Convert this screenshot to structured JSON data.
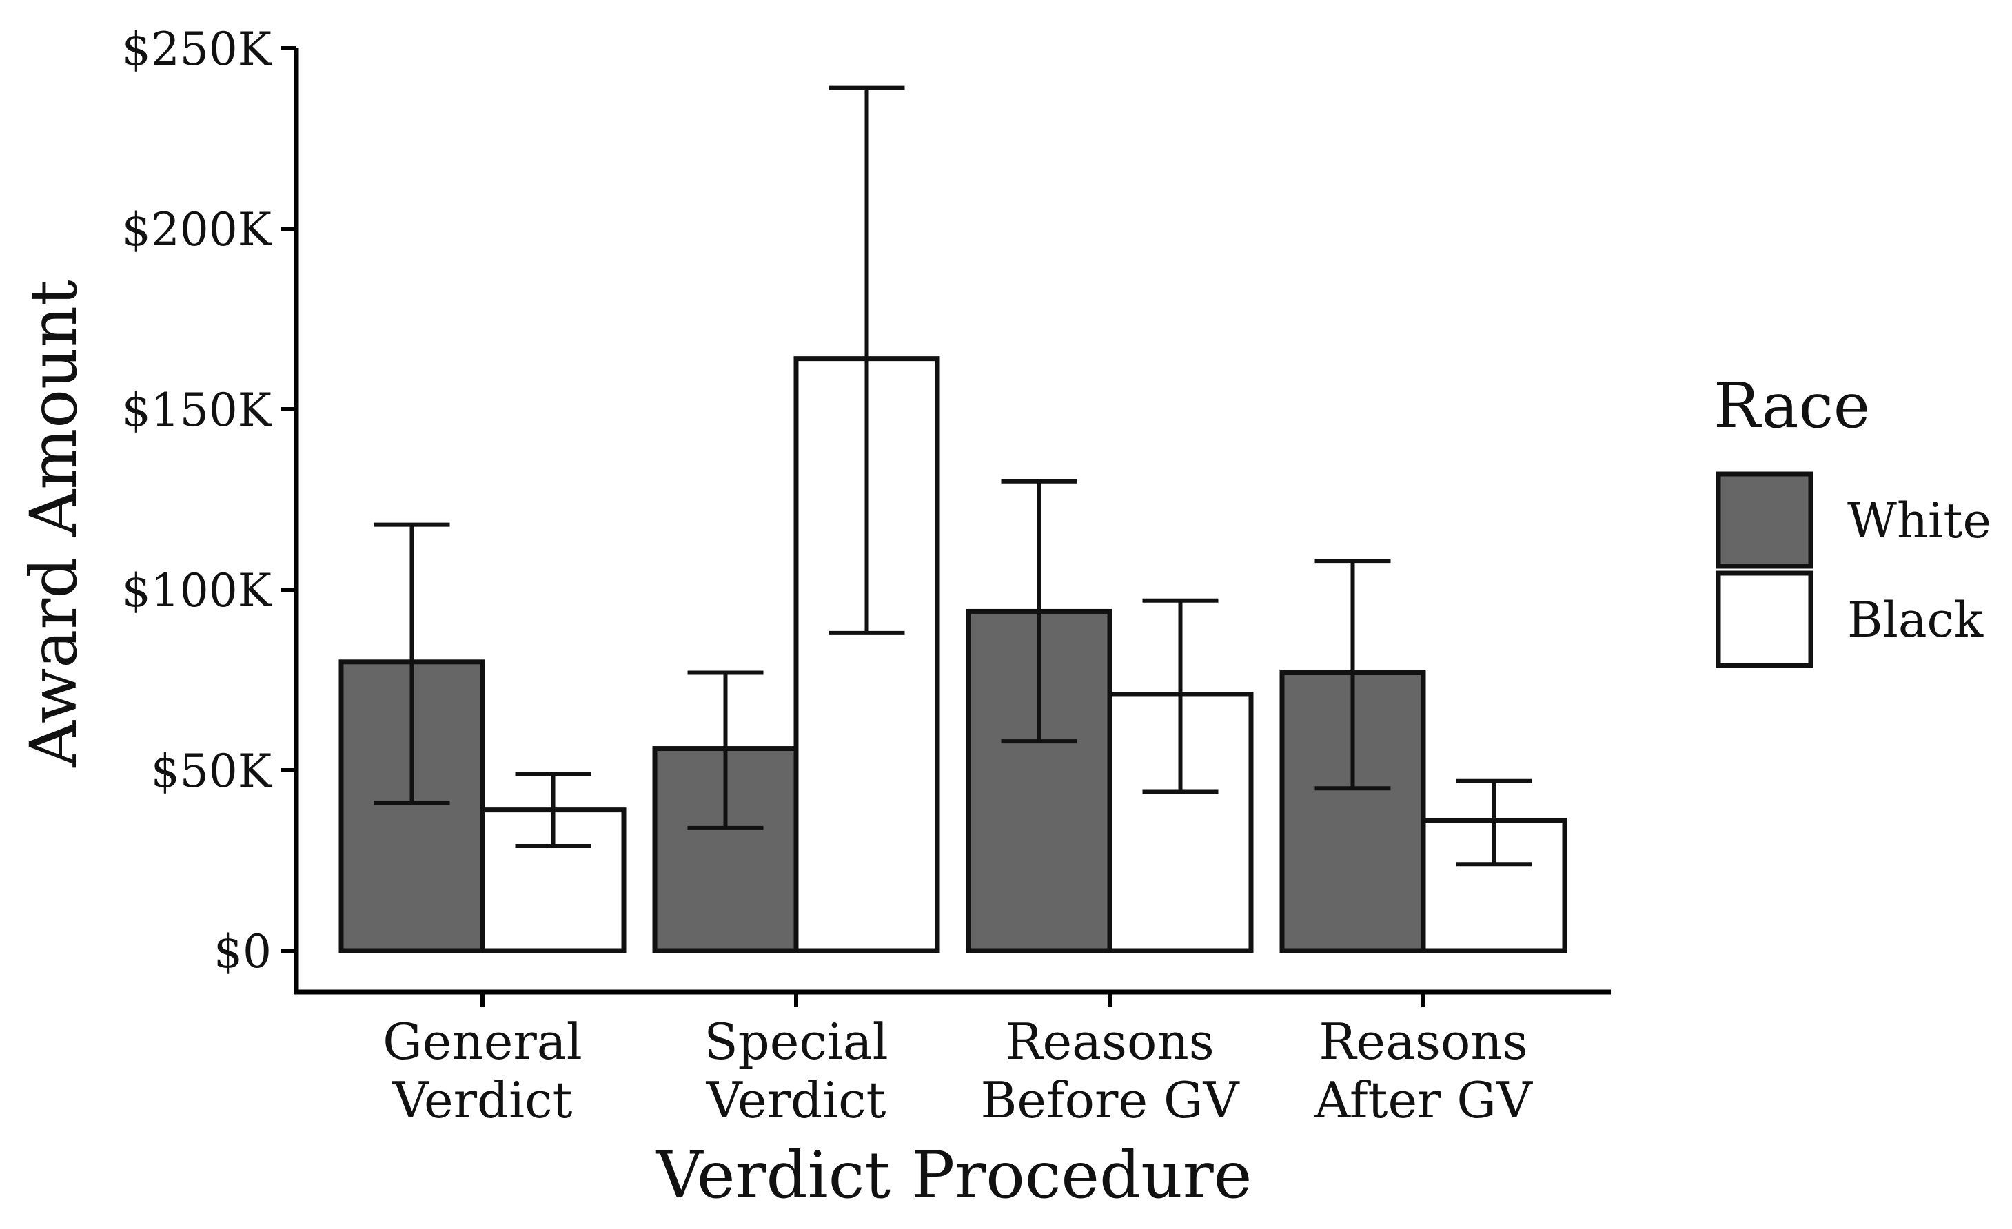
{
  "chart_data": {
    "type": "bar",
    "title": "",
    "xlabel": "Verdict Procedure",
    "ylabel": "Award Amount",
    "ylim": [
      0,
      250000
    ],
    "yticks": [
      {
        "value": 0,
        "label": "$0"
      },
      {
        "value": 50000,
        "label": "$50K"
      },
      {
        "value": 100000,
        "label": "$100K"
      },
      {
        "value": 150000,
        "label": "$150K"
      },
      {
        "value": 200000,
        "label": "$200K"
      },
      {
        "value": 250000,
        "label": "$250K"
      }
    ],
    "categories": [
      {
        "line1": "General",
        "line2": "Verdict"
      },
      {
        "line1": "Special",
        "line2": "Verdict"
      },
      {
        "line1": "Reasons",
        "line2": "Before GV"
      },
      {
        "line1": "Reasons",
        "line2": "After GV"
      }
    ],
    "series": [
      {
        "name": "White",
        "color": "#666666",
        "values": [
          80000,
          56000,
          94000,
          77000
        ],
        "err_low": [
          41000,
          34000,
          58000,
          45000
        ],
        "err_high": [
          118000,
          77000,
          130000,
          108000
        ]
      },
      {
        "name": "Black",
        "color": "#ffffff",
        "values": [
          39000,
          164000,
          71000,
          36000
        ],
        "err_low": [
          29000,
          88000,
          44000,
          24000
        ],
        "err_high": [
          49000,
          239000,
          97000,
          47000
        ]
      }
    ],
    "legend": {
      "title": "Race",
      "position": "right"
    },
    "grid": false
  }
}
